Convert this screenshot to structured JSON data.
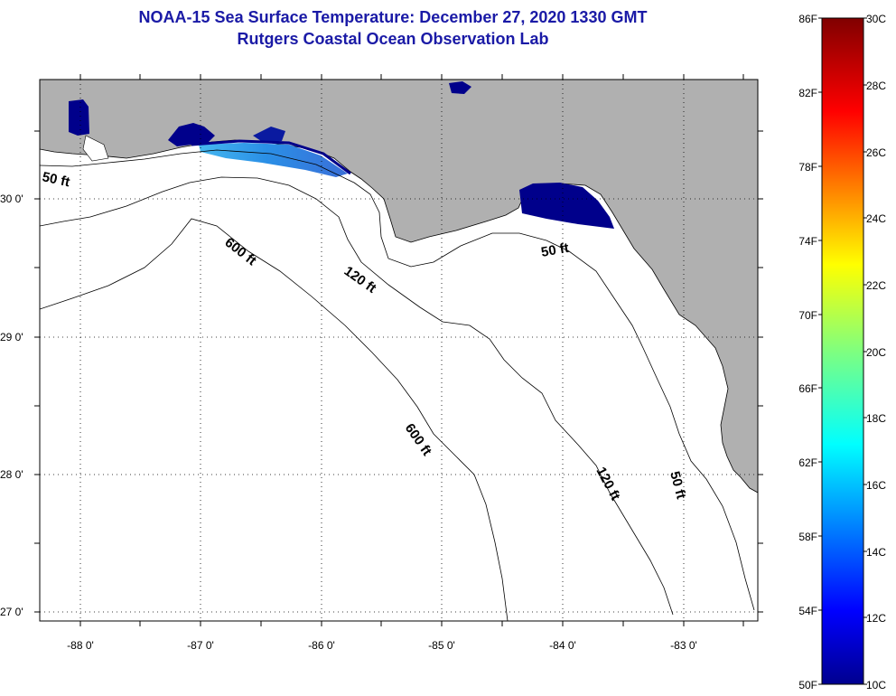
{
  "title": {
    "line1": "NOAA-15 Sea Surface Temperature:  December 27, 2020 1330 GMT",
    "line2": "Rutgers Coastal Ocean Observation Lab"
  },
  "colors": {
    "land": "#b0b0b0",
    "title": "#1a1aa6",
    "sst_cold": "#00008b",
    "sst_cool": "#2a8fe6"
  },
  "axes": {
    "lat_labels": [
      "30 0'",
      "29 0'",
      "28 0'",
      "27 0'"
    ],
    "lon_labels": [
      "-88 0'",
      "-87 0'",
      "-86 0'",
      "-85 0'",
      "-84 0'",
      "-83 0'"
    ]
  },
  "contours": {
    "c50_west": "50 ft",
    "c600_a": "600 ft",
    "c120_a": "120 ft",
    "c50_east": "50 ft",
    "c600_b": "600 ft",
    "c120_b": "120 ft",
    "c50_south": "50 ft"
  },
  "colorbar": {
    "f_labels": [
      "86F",
      "82F",
      "78F",
      "74F",
      "70F",
      "66F",
      "62F",
      "58F",
      "54F",
      "50F"
    ],
    "c_labels": [
      "30C",
      "28C",
      "26C",
      "24C",
      "22C",
      "20C",
      "18C",
      "16C",
      "14C",
      "12C",
      "10C"
    ]
  }
}
